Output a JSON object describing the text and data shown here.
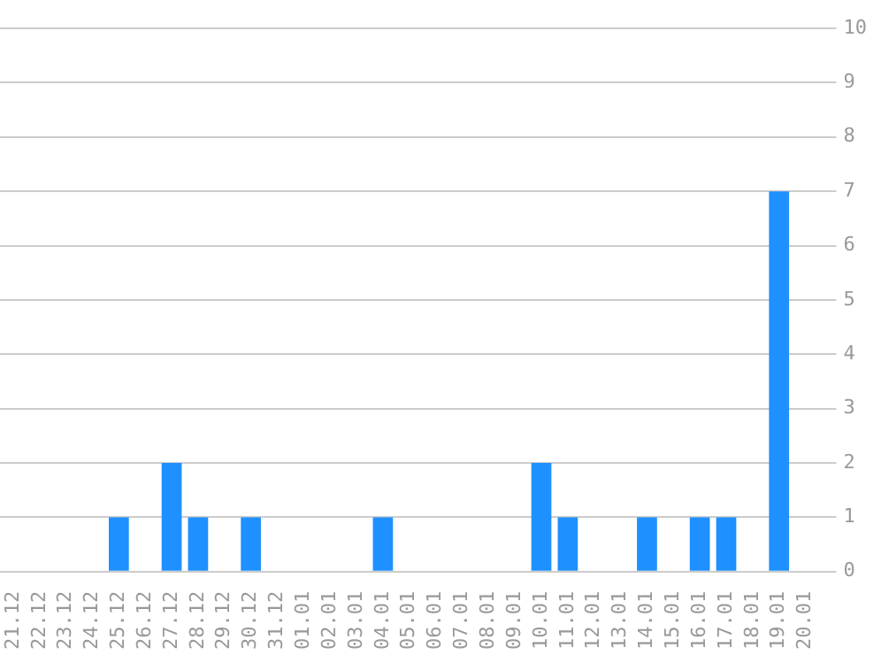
{
  "chart_data": {
    "type": "bar",
    "categories": [
      "21.12",
      "22.12",
      "23.12",
      "24.12",
      "25.12",
      "26.12",
      "27.12",
      "28.12",
      "29.12",
      "30.12",
      "31.12",
      "01.01",
      "02.01",
      "03.01",
      "04.01",
      "05.01",
      "06.01",
      "07.01",
      "08.01",
      "09.01",
      "10.01",
      "11.01",
      "12.01",
      "13.01",
      "14.01",
      "15.01",
      "16.01",
      "17.01",
      "18.01",
      "19.01",
      "20.01"
    ],
    "values": [
      0,
      0,
      0,
      0,
      1,
      0,
      2,
      1,
      0,
      1,
      0,
      0,
      0,
      0,
      1,
      0,
      0,
      0,
      0,
      0,
      2,
      1,
      0,
      0,
      1,
      0,
      1,
      1,
      0,
      7,
      0
    ],
    "color": "#1e90ff",
    "ylim": [
      0,
      10
    ],
    "yticks": [
      0,
      1,
      2,
      3,
      4,
      5,
      6,
      7,
      8,
      9,
      10
    ],
    "grid": "y",
    "legend": false
  }
}
